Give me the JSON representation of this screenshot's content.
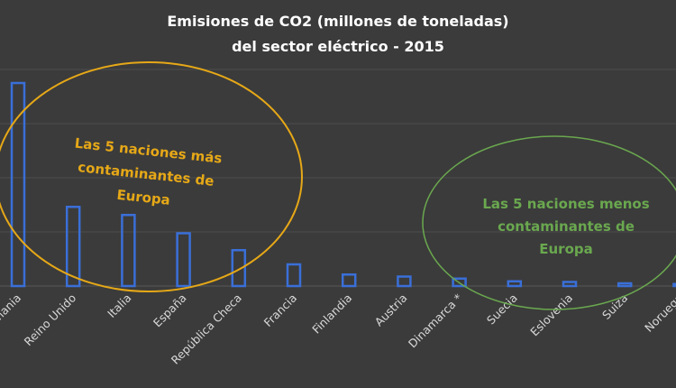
{
  "chart_data": {
    "type": "bar",
    "title_lines": [
      "Emisiones de CO2 (millones de toneladas)",
      "del sector eléctrico - 2015"
    ],
    "xlabel": "",
    "ylabel": "",
    "categories": [
      "Alemania",
      "Reino Unido",
      "Italia",
      "España",
      "República Checa",
      "Francia",
      "Finlandia",
      "Austria",
      "Dinamarca *",
      "Suecia",
      "Eslovenia",
      "Suiza",
      "Noruega"
    ],
    "values": [
      300,
      117,
      105,
      78,
      53,
      32,
      17,
      14,
      11,
      7,
      6,
      4,
      3
    ],
    "ylim": [
      0,
      320
    ],
    "grid": true,
    "annotations": [
      {
        "lines": [
          "Las 5 naciones más",
          "contaminantes de",
          "Europa"
        ],
        "color": "#e6a817"
      },
      {
        "lines": [
          "Las 5 naciones menos",
          "contaminantes de",
          "Europa"
        ],
        "color": "#6aa84f"
      }
    ]
  },
  "colors": {
    "bar": "#3a6fd8",
    "background": "#3b3b3b"
  }
}
